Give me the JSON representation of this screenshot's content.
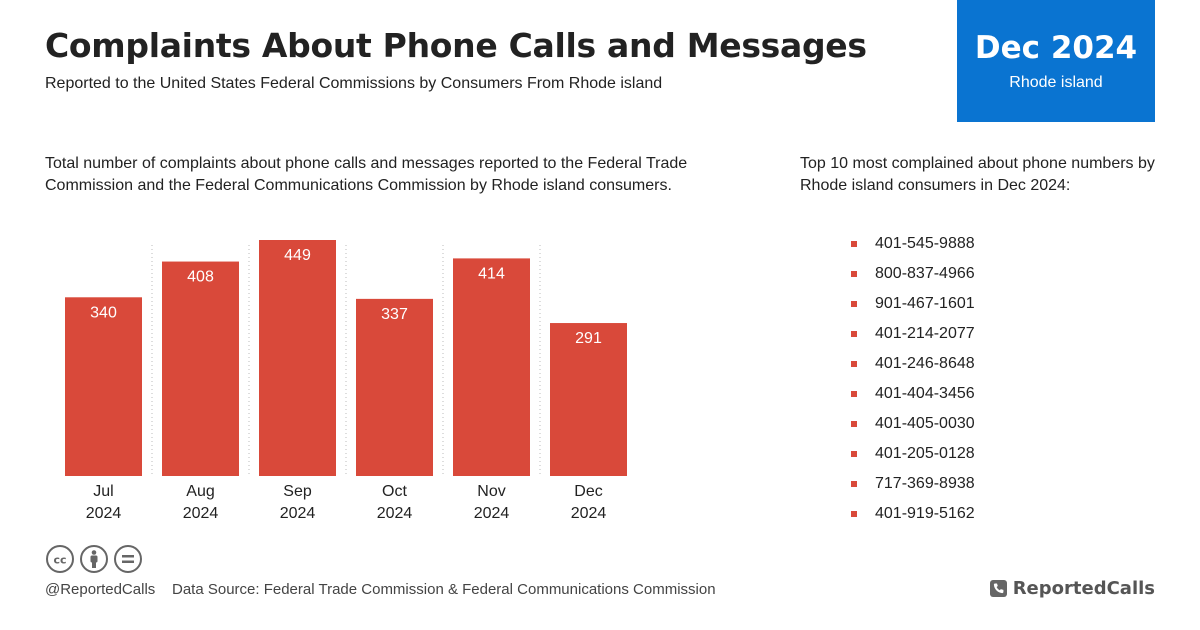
{
  "header": {
    "title": "Complaints About Phone Calls and Messages",
    "subtitle": "Reported to the United States Federal Commissions by Consumers From Rhode island"
  },
  "date_badge": {
    "period": "Dec 2024",
    "region": "Rhode island",
    "color": "#0a74d1"
  },
  "chart_description": "Total number of complaints about phone calls and messages reported to the Federal Trade Commission and the Federal Communications Commission by Rhode island consumers.",
  "top_numbers": {
    "description": "Top 10 most complained about phone numbers by Rhode island consumers in Dec 2024:",
    "items": [
      "401-545-9888",
      "800-837-4966",
      "901-467-1601",
      "401-214-2077",
      "401-246-8648",
      "401-404-3456",
      "401-405-0030",
      "401-205-0128",
      "717-369-8938",
      "401-919-5162"
    ]
  },
  "chart_data": {
    "type": "bar",
    "categories": [
      [
        "Jul",
        "2024"
      ],
      [
        "Aug",
        "2024"
      ],
      [
        "Sep",
        "2024"
      ],
      [
        "Oct",
        "2024"
      ],
      [
        "Nov",
        "2024"
      ],
      [
        "Dec",
        "2024"
      ]
    ],
    "values": [
      340,
      408,
      449,
      337,
      414,
      291
    ],
    "bar_color": "#d9493a",
    "value_label_color": "#ffffff",
    "grid": "dotted vertical separators"
  },
  "footer": {
    "handle": "@ReportedCalls",
    "source": "Data Source: Federal Trade Commission & Federal Communications Commission",
    "brand": "ReportedCalls",
    "license_icons": [
      "cc-icon",
      "by-icon",
      "nd-icon"
    ]
  }
}
